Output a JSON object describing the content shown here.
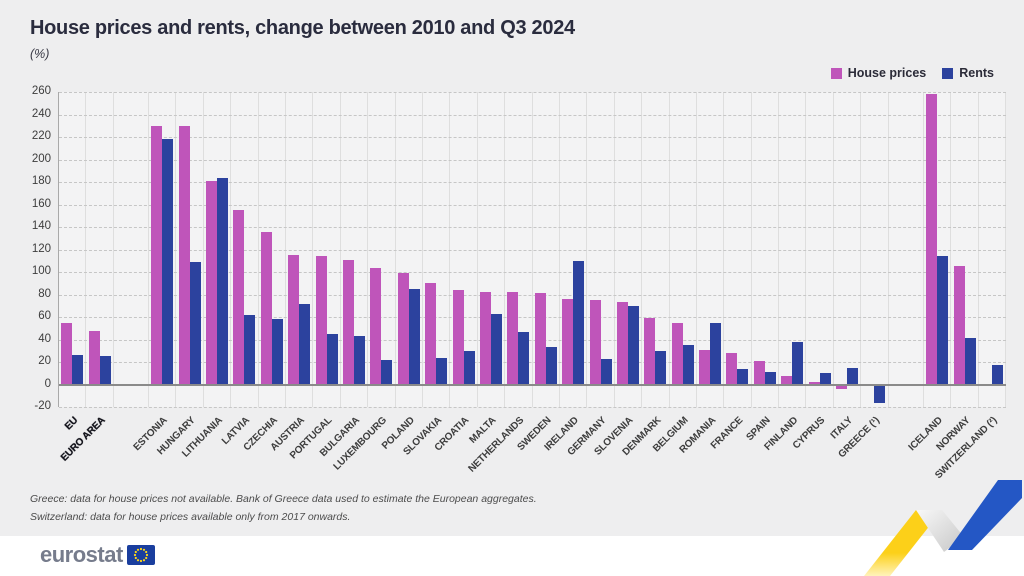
{
  "header": {
    "title": "House prices and rents, change between 2010 and Q3 2024",
    "subtitle": "(%)"
  },
  "legend": {
    "items": [
      {
        "label": "House prices",
        "color": "#bf55ba"
      },
      {
        "label": "Rents",
        "color": "#2c429e"
      }
    ]
  },
  "chart_data": {
    "type": "bar",
    "title": "House prices and rents, change between 2010 and Q3 2024",
    "subtitle": "(%)",
    "unit": "%",
    "categories": [
      "EU",
      "EURO AREA",
      "ESTONIA",
      "HUNGARY",
      "LITHUANIA",
      "LATVIA",
      "CZECHIA",
      "AUSTRIA",
      "PORTUGAL",
      "BULGARIA",
      "LUXEMBOURG",
      "POLAND",
      "SLOVAKIA",
      "CROATIA",
      "MALTA",
      "NETHERLANDS",
      "SWEDEN",
      "IRELAND",
      "GERMANY",
      "SLOVENIA",
      "DENMARK",
      "BELGIUM",
      "ROMANIA",
      "FRANCE",
      "SPAIN",
      "FINLAND",
      "CYPRUS",
      "ITALY",
      "GREECE (¹)",
      "ICELAND",
      "NORWAY",
      "SWITZERLAND (²)"
    ],
    "series": [
      {
        "name": "House prices",
        "color": "#bf55ba",
        "values": [
          55,
          48,
          230,
          230,
          181,
          155,
          136,
          115,
          114,
          111,
          104,
          99,
          90,
          84,
          82,
          82,
          81,
          76,
          75,
          73,
          59,
          55,
          31,
          28,
          21,
          8,
          2,
          -4,
          null,
          258,
          105,
          null
        ]
      },
      {
        "name": "Rents",
        "color": "#2c429e",
        "values": [
          26,
          25,
          218,
          109,
          184,
          62,
          58,
          72,
          45,
          43,
          22,
          85,
          24,
          30,
          63,
          47,
          33,
          110,
          23,
          70,
          30,
          35,
          55,
          14,
          11,
          38,
          10,
          15,
          -16,
          114,
          41,
          17
        ]
      }
    ],
    "ylim": [
      -20,
      260
    ],
    "ytick_step": 20,
    "grid": "horizontal-dashed",
    "legend_position": "top-right",
    "group_gap_after_index": [
      1,
      28
    ],
    "bold_category_index": [
      0,
      1
    ]
  },
  "footnotes": {
    "line1": "Greece: data for house prices not available. Bank of Greece data used to estimate the European aggregates.",
    "line2": "Switzerland: data for house prices available only from 2017 onwards."
  },
  "footer": {
    "logo_text": "eurostat"
  },
  "colors": {
    "house_prices": "#bf55ba",
    "rents": "#2c429e",
    "background": "#eeeeef",
    "plot_background": "#f3f3f4",
    "grid": "#c6c6c6",
    "zero_line": "#8a8a8a",
    "title_text": "#2a2c3e",
    "ribbon_yellow": "#fcd019",
    "ribbon_blue": "#2457c5",
    "flag_blue": "#1a3e9e",
    "star_yellow": "#ffd617"
  }
}
